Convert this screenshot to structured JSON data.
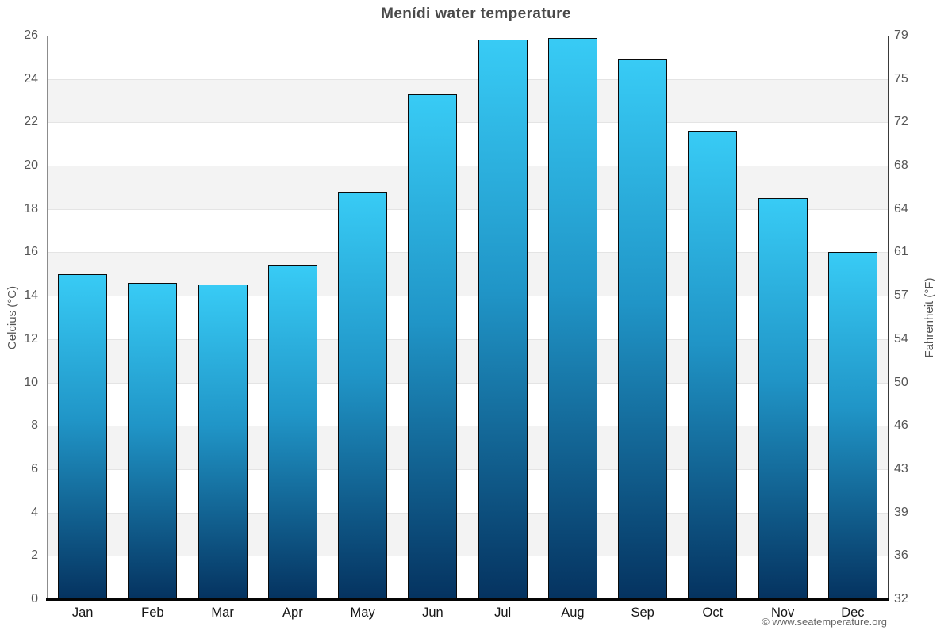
{
  "title": "Menídi water temperature",
  "footer": "© www.seatemperature.org",
  "chart_data": {
    "type": "bar",
    "title": "Menídi water temperature",
    "categories": [
      "Jan",
      "Feb",
      "Mar",
      "Apr",
      "May",
      "Jun",
      "Jul",
      "Aug",
      "Sep",
      "Oct",
      "Nov",
      "Dec"
    ],
    "values": [
      15.0,
      14.6,
      14.5,
      15.4,
      18.8,
      23.3,
      25.8,
      25.9,
      24.9,
      21.6,
      18.5,
      16.0
    ],
    "unit": "°C",
    "ylabel_left": "Celcius (°C)",
    "ylabel_right": "Fahrenheit (°F)",
    "ylim": [
      0,
      26
    ],
    "yticks_left": [
      0,
      2,
      4,
      6,
      8,
      10,
      12,
      14,
      16,
      18,
      20,
      22,
      24,
      26
    ],
    "yticks_right": [
      32,
      36,
      39,
      43,
      46,
      50,
      54,
      57,
      61,
      64,
      68,
      72,
      75,
      79
    ],
    "grid": "horizontal gridlines every 2°C with alternating white/grey bands",
    "legend": "none",
    "colors": {
      "bar_top": "#38cbf5",
      "bar_bottom": "#053360",
      "bar_border": "#0a0a0a",
      "band_grey": "#f3f3f3",
      "gridline": "#e4e4e4",
      "tick_text": "#555555",
      "month_text": "#151515",
      "title_text": "#4a4a4a",
      "footer_text": "#666666"
    }
  }
}
